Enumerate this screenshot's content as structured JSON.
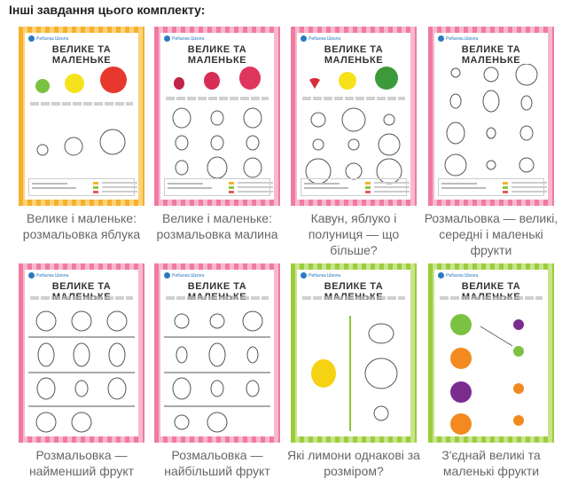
{
  "heading": "Інші завдання цього комплекту:",
  "worksheet_title": "ВЕЛИКЕ ТА МАЛЕНЬКЕ",
  "logo_text": "Рибалка Школа",
  "cards": [
    {
      "caption": "Велике і маленьке: розмальовка яблука",
      "border": "#f6b02c"
    },
    {
      "caption": "Велике і маленьке: розмальовка малина",
      "border": "#f07aa0"
    },
    {
      "caption": "Кавун, яблуко і полуниця — що більше?",
      "border": "#f07aa0"
    },
    {
      "caption": "Розмальовка — великі, середні і маленькі фрукти",
      "border": "#f07aa0"
    },
    {
      "caption": "Розмальовка — найменший фрукт",
      "border": "#f07aa0"
    },
    {
      "caption": "Розмальовка — найбільший фрукт",
      "border": "#f07aa0"
    },
    {
      "caption": "Які лимони однакові за розміром?",
      "border": "#9ccc3c"
    },
    {
      "caption": "З'єднай великі та маленькі фрукти",
      "border": "#9ccc3c"
    }
  ]
}
